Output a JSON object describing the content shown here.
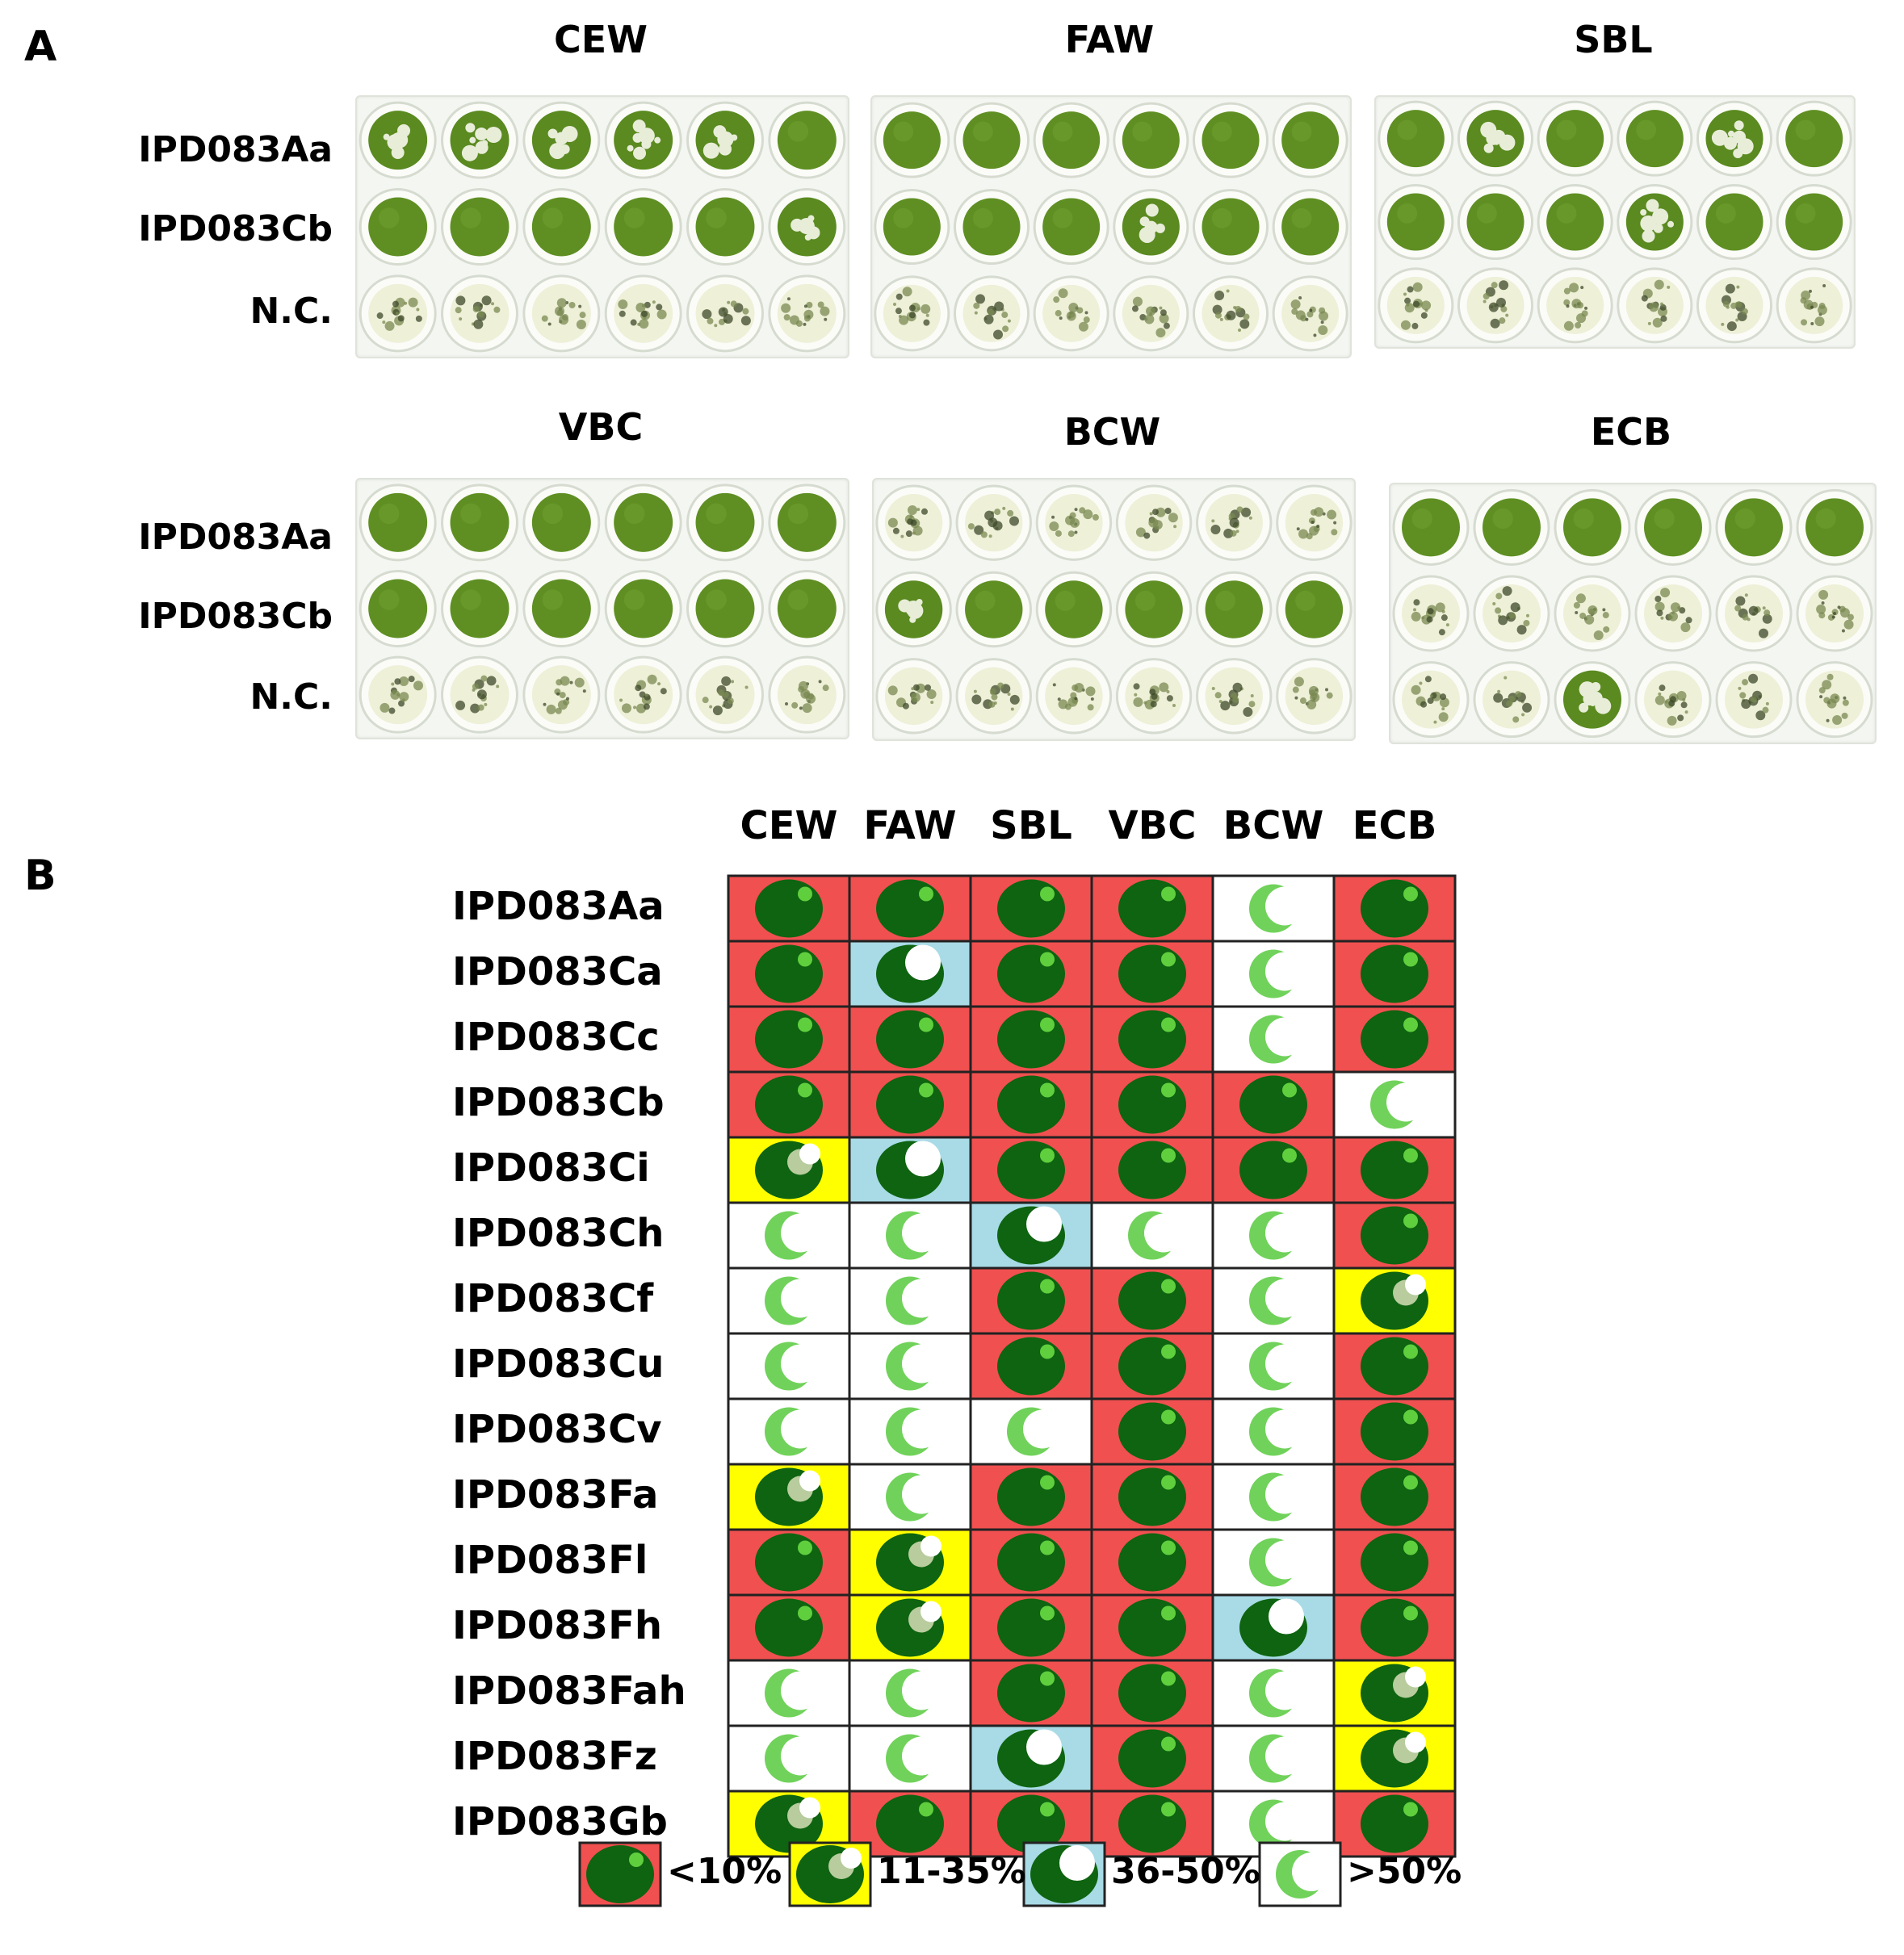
{
  "panel_a": {
    "letter": "A",
    "row_labels": [
      "IPD083Aa",
      "IPD083Cb",
      "N.C."
    ],
    "plates": [
      {
        "pest": "CEW",
        "wells": [
          [
            "damaged",
            "damaged",
            "damaged",
            "damaged",
            "damaged",
            "intact"
          ],
          [
            "intact",
            "intact",
            "intact",
            "intact",
            "intact",
            "damaged"
          ],
          [
            "eaten",
            "eaten",
            "eaten",
            "eaten",
            "eaten",
            "eaten"
          ]
        ]
      },
      {
        "pest": "FAW",
        "wells": [
          [
            "intact",
            "intact",
            "intact",
            "intact",
            "intact",
            "intact"
          ],
          [
            "intact",
            "intact",
            "intact",
            "damaged",
            "intact",
            "intact"
          ],
          [
            "eaten",
            "eaten",
            "eaten",
            "eaten",
            "eaten",
            "eaten"
          ]
        ]
      },
      {
        "pest": "SBL",
        "wells": [
          [
            "intact",
            "damaged",
            "intact",
            "intact",
            "damaged",
            "intact"
          ],
          [
            "intact",
            "intact",
            "intact",
            "damaged",
            "intact",
            "intact"
          ],
          [
            "eaten",
            "eaten",
            "eaten",
            "eaten",
            "eaten",
            "eaten"
          ]
        ]
      },
      {
        "pest": "VBC",
        "wells": [
          [
            "intact",
            "intact",
            "intact",
            "intact",
            "intact",
            "intact"
          ],
          [
            "intact",
            "intact",
            "intact",
            "intact",
            "intact",
            "intact"
          ],
          [
            "eaten",
            "eaten",
            "eaten",
            "eaten",
            "eaten",
            "eaten"
          ]
        ]
      },
      {
        "pest": "BCW",
        "wells": [
          [
            "eaten",
            "eaten",
            "eaten",
            "eaten",
            "eaten",
            "eaten"
          ],
          [
            "damaged",
            "intact",
            "intact",
            "intact",
            "intact",
            "intact"
          ],
          [
            "eaten",
            "eaten",
            "eaten",
            "eaten",
            "eaten",
            "eaten"
          ]
        ]
      },
      {
        "pest": "ECB",
        "wells": [
          [
            "intact",
            "intact",
            "intact",
            "intact",
            "intact",
            "intact"
          ],
          [
            "eaten",
            "eaten",
            "eaten",
            "eaten",
            "eaten",
            "eaten"
          ],
          [
            "eaten",
            "eaten",
            "damaged",
            "eaten",
            "eaten",
            "eaten"
          ]
        ]
      }
    ]
  },
  "panel_b": {
    "letter": "B",
    "columns": [
      "CEW",
      "FAW",
      "SBL",
      "VBC",
      "BCW",
      "ECB"
    ],
    "rows": [
      {
        "label": "IPD083Aa",
        "values": [
          1,
          1,
          1,
          1,
          4,
          1
        ]
      },
      {
        "label": "IPD083Ca",
        "values": [
          1,
          3,
          1,
          1,
          4,
          1
        ]
      },
      {
        "label": "IPD083Cc",
        "values": [
          1,
          1,
          1,
          1,
          4,
          1
        ]
      },
      {
        "label": "IPD083Cb",
        "values": [
          1,
          1,
          1,
          1,
          1,
          4
        ]
      },
      {
        "label": "IPD083Ci",
        "values": [
          2,
          3,
          1,
          1,
          1,
          1
        ]
      },
      {
        "label": "IPD083Ch",
        "values": [
          4,
          4,
          3,
          4,
          4,
          1
        ]
      },
      {
        "label": "IPD083Cf",
        "values": [
          4,
          4,
          1,
          1,
          4,
          2
        ]
      },
      {
        "label": "IPD083Cu",
        "values": [
          4,
          4,
          1,
          1,
          4,
          1
        ]
      },
      {
        "label": "IPD083Cv",
        "values": [
          4,
          4,
          4,
          1,
          4,
          1
        ]
      },
      {
        "label": "IPD083Fa",
        "values": [
          2,
          4,
          1,
          1,
          4,
          1
        ]
      },
      {
        "label": "IPD083Fl",
        "values": [
          1,
          2,
          1,
          1,
          4,
          1
        ]
      },
      {
        "label": "IPD083Fh",
        "values": [
          1,
          2,
          1,
          1,
          3,
          1
        ]
      },
      {
        "label": "IPD083Fah",
        "values": [
          4,
          4,
          1,
          1,
          4,
          2
        ]
      },
      {
        "label": "IPD083Fz",
        "values": [
          4,
          4,
          3,
          1,
          4,
          2
        ]
      },
      {
        "label": "IPD083Gb",
        "values": [
          2,
          1,
          1,
          1,
          4,
          1
        ]
      }
    ],
    "legend": [
      {
        "key": 1,
        "label": "<10%",
        "color": "#f05050"
      },
      {
        "key": 2,
        "label": "11-35%",
        "color": "#ffff00"
      },
      {
        "key": 3,
        "label": "36-50%",
        "color": "#a8dbe6"
      },
      {
        "key": 4,
        "label": ">50%",
        "color": "#ffffff"
      }
    ]
  }
}
